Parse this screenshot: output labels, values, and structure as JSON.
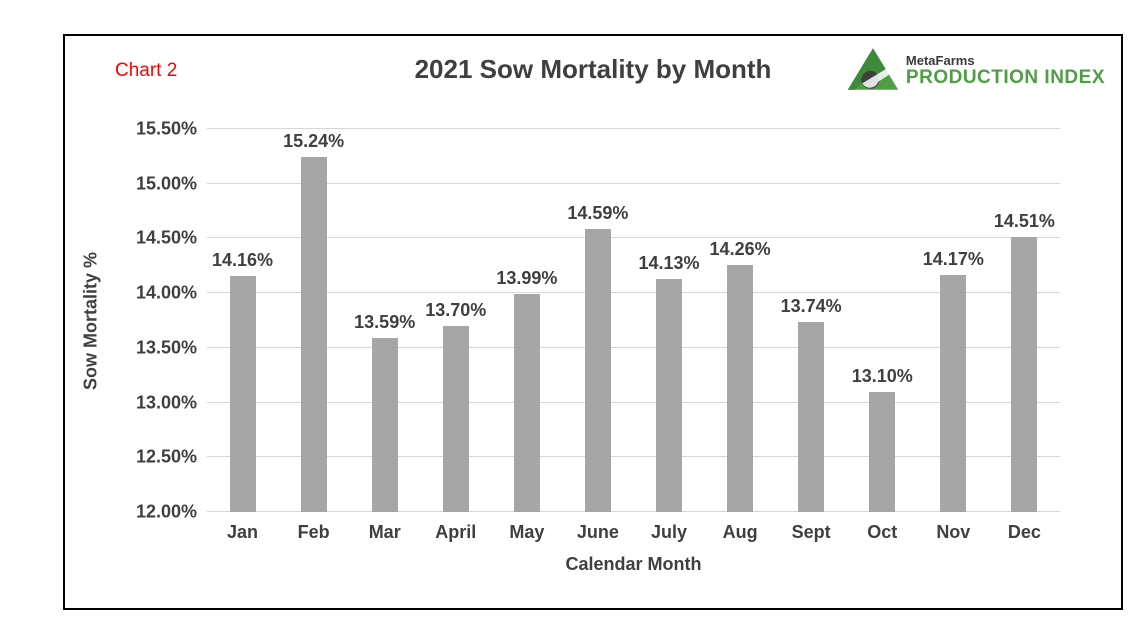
{
  "frame": {
    "chart_number_label": "Chart 2"
  },
  "header": {
    "title": "2021 Sow Mortality by Month",
    "logo": {
      "brand": "MetaFarms",
      "product": "PRODUCTION INDEX",
      "triangle_color": "#4f9e45",
      "circle_color": "#3f3f3f"
    }
  },
  "chart_data": {
    "type": "bar",
    "title": "2021 Sow Mortality by Month",
    "categories": [
      "Jan",
      "Feb",
      "Mar",
      "April",
      "May",
      "June",
      "July",
      "Aug",
      "Sept",
      "Oct",
      "Nov",
      "Dec"
    ],
    "values": [
      14.16,
      15.24,
      13.59,
      13.7,
      13.99,
      14.59,
      14.13,
      14.26,
      13.74,
      13.1,
      14.17,
      14.51
    ],
    "value_labels": [
      "14.16%",
      "15.24%",
      "13.59%",
      "13.70%",
      "13.99%",
      "14.59%",
      "14.13%",
      "14.26%",
      "13.74%",
      "13.10%",
      "14.17%",
      "14.51%"
    ],
    "xlabel": "Calendar Month",
    "ylabel": "Sow Mortality %",
    "ylim": [
      12.0,
      15.5
    ],
    "ytick_step": 0.5,
    "yticks": [
      "15.50%",
      "15.00%",
      "14.50%",
      "14.00%",
      "13.50%",
      "13.00%",
      "12.50%",
      "12.00%"
    ],
    "grid": true,
    "legend": "none",
    "bar_color": "#a6a6a6",
    "gridline_color": "#d6d6d6",
    "text_color": "#3f3f3f",
    "chart_number_color": "#ff0000"
  }
}
